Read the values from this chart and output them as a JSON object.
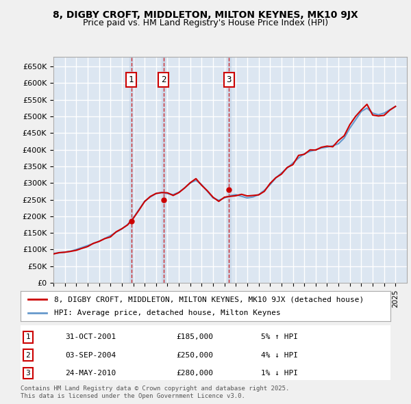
{
  "title_line1": "8, DIGBY CROFT, MIDDLETON, MILTON KEYNES, MK10 9JX",
  "title_line2": "Price paid vs. HM Land Registry's House Price Index (HPI)",
  "ylabel": "",
  "background_color": "#dce6f1",
  "plot_bg_color": "#dce6f1",
  "grid_color": "#ffffff",
  "ylim": [
    0,
    680000
  ],
  "yticks": [
    0,
    50000,
    100000,
    150000,
    200000,
    250000,
    300000,
    350000,
    400000,
    450000,
    500000,
    550000,
    600000,
    650000
  ],
  "xlim_start": 1995.0,
  "xlim_end": 2026.0,
  "legend_label_red": "8, DIGBY CROFT, MIDDLETON, MILTON KEYNES, MK10 9JX (detached house)",
  "legend_label_blue": "HPI: Average price, detached house, Milton Keynes",
  "sale_dates": [
    2001.83,
    2004.67,
    2010.39
  ],
  "sale_prices": [
    185000,
    250000,
    280000
  ],
  "sale_labels": [
    "1",
    "2",
    "3"
  ],
  "sale_info": [
    {
      "label": "1",
      "date": "31-OCT-2001",
      "price": "£185,000",
      "pct": "5% ↑ HPI"
    },
    {
      "label": "2",
      "date": "03-SEP-2004",
      "price": "£250,000",
      "pct": "4% ↓ HPI"
    },
    {
      "label": "3",
      "date": "24-MAY-2010",
      "price": "£280,000",
      "pct": "1% ↓ HPI"
    }
  ],
  "footer": "Contains HM Land Registry data © Crown copyright and database right 2025.\nThis data is licensed under the Open Government Licence v3.0.",
  "red_color": "#cc0000",
  "blue_color": "#6699cc",
  "shade_color": "#c6d5e8"
}
